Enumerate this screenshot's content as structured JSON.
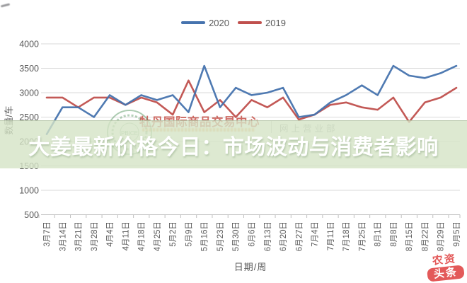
{
  "overlay_title": {
    "text": "大姜最新价格今日：市场波动与消费者影响",
    "band_color": "rgba(213,228,198,0.8)",
    "text_color": "#ffffff"
  },
  "watermarks": {
    "exchange_name": "牡丹国际商品交易中心",
    "department": "网上营业部",
    "seal_caption": "PBICE",
    "badge_line1": "农资",
    "badge_line2": "头条",
    "badge_color": "#e14b4b"
  },
  "chart_data": {
    "type": "line",
    "title": "",
    "xlabel": "日期/周",
    "ylabel": "数量/车",
    "ylim": [
      500,
      4000
    ],
    "yticks": [
      500,
      1000,
      1500,
      2000,
      2500,
      3000,
      3500,
      4000
    ],
    "grid": true,
    "legend_position": "top-center",
    "categories": [
      "3月7日",
      "3月14日",
      "3月21日",
      "3月28日",
      "4月4日",
      "4月11日",
      "4月18日",
      "4月25日",
      "5月2日",
      "5月9日",
      "5月16日",
      "5月23日",
      "5月30日",
      "6月6日",
      "6月13日",
      "6月20日",
      "6月27日",
      "7月4日",
      "7月11日",
      "7月18日",
      "7月25日",
      "8月1日",
      "8月8日",
      "8月15日",
      "8月22日",
      "8月29日",
      "9月5日"
    ],
    "series": [
      {
        "name": "2020",
        "color": "#4673ae",
        "values": [
          2150,
          2700,
          2700,
          2500,
          2950,
          2750,
          2950,
          2850,
          2950,
          2600,
          3550,
          2700,
          3100,
          2950,
          3000,
          3100,
          2500,
          2550,
          2800,
          2950,
          3150,
          2950,
          3550,
          3350,
          3300,
          3400,
          3550
        ]
      },
      {
        "name": "2019",
        "color": "#c0504d",
        "values": [
          2900,
          2900,
          2700,
          2900,
          2900,
          2750,
          2900,
          2800,
          2550,
          3250,
          2600,
          2850,
          2500,
          2850,
          2700,
          2900,
          2450,
          2550,
          2750,
          2800,
          2700,
          2650,
          2900,
          2400,
          2800,
          2900,
          3100
        ]
      }
    ]
  }
}
